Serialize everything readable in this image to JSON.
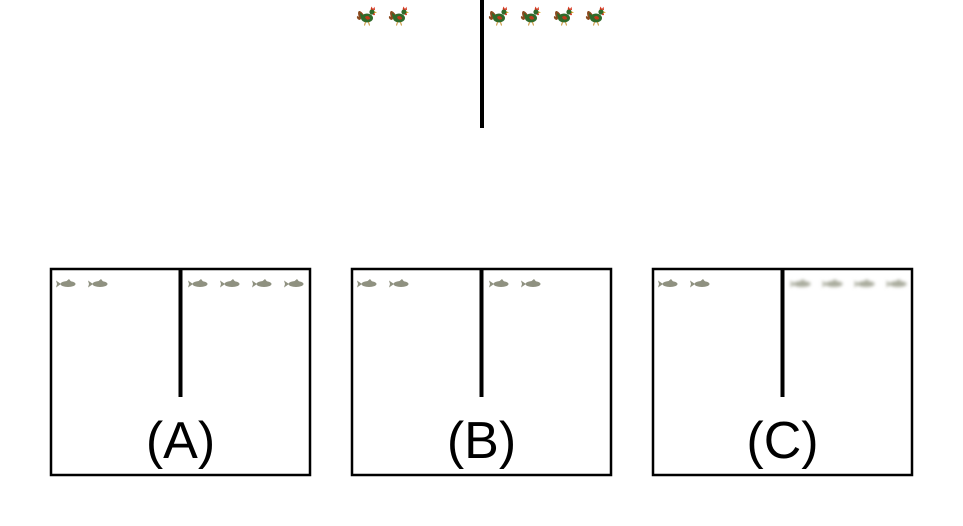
{
  "colors": {
    "background": "#ffffff",
    "line": "#000000",
    "rooster_body": "#2f6a2a",
    "rooster_comb": "#d7321b",
    "rooster_tail": "#8a4a1e",
    "fish_normal": "#8f9180",
    "fish_blurred": "#a9ab9c"
  },
  "top_scene": {
    "icon": "rooster-icon",
    "left_count": 2,
    "right_count": 4
  },
  "options": [
    {
      "label": "(A)",
      "icon": "fish-icon",
      "left_count": 2,
      "right_count": 4,
      "right_style": "normal"
    },
    {
      "label": "(B)",
      "icon": "fish-icon",
      "left_count": 2,
      "right_count": 2,
      "right_style": "normal"
    },
    {
      "label": "(C)",
      "icon": "fish-icon",
      "left_count": 2,
      "right_count": 4,
      "right_style": "blurred"
    }
  ]
}
